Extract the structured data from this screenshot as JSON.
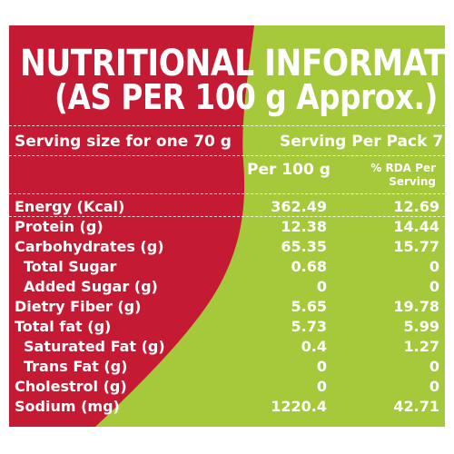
{
  "colors": {
    "red": "#c41a33",
    "green": "#a5c93b",
    "text": "#ffffff"
  },
  "title": {
    "line1": "NUTRITIONAL INFORMATION",
    "line2": "(AS PER 100 g Approx.)"
  },
  "serving_size": "Serving size for one 70 g",
  "servings_per_pack": "Serving Per Pack 7",
  "columns": {
    "per100": "Per 100 g",
    "rda_line1": "% RDA Per",
    "rda_line2": "Serving"
  },
  "rows": [
    {
      "label": "Energy (Kcal)",
      "per100": "362.49",
      "rda": "12.69",
      "indent": false
    },
    {
      "label": "Protein (g)",
      "per100": "12.38",
      "rda": "14.44",
      "indent": false
    },
    {
      "label": "Carbohydrates (g)",
      "per100": "65.35",
      "rda": "15.77",
      "indent": false
    },
    {
      "label": "Total Sugar",
      "per100": "0.68",
      "rda": "0",
      "indent": true
    },
    {
      "label": "Added Sugar (g)",
      "per100": "0",
      "rda": "0",
      "indent": true
    },
    {
      "label": "Dietry Fiber (g)",
      "per100": "5.65",
      "rda": "19.78",
      "indent": false
    },
    {
      "label": "Total fat (g)",
      "per100": "5.73",
      "rda": "5.99",
      "indent": false
    },
    {
      "label": "Saturated Fat (g)",
      "per100": "0.4",
      "rda": "1.27",
      "indent": true
    },
    {
      "label": "Trans Fat (g)",
      "per100": "0",
      "rda": "0",
      "indent": true
    },
    {
      "label": "Cholestrol (g)",
      "per100": "0",
      "rda": "0",
      "indent": false
    },
    {
      "label": "Sodium (mg)",
      "per100": "1220.4",
      "rda": "42.71",
      "indent": false
    }
  ]
}
